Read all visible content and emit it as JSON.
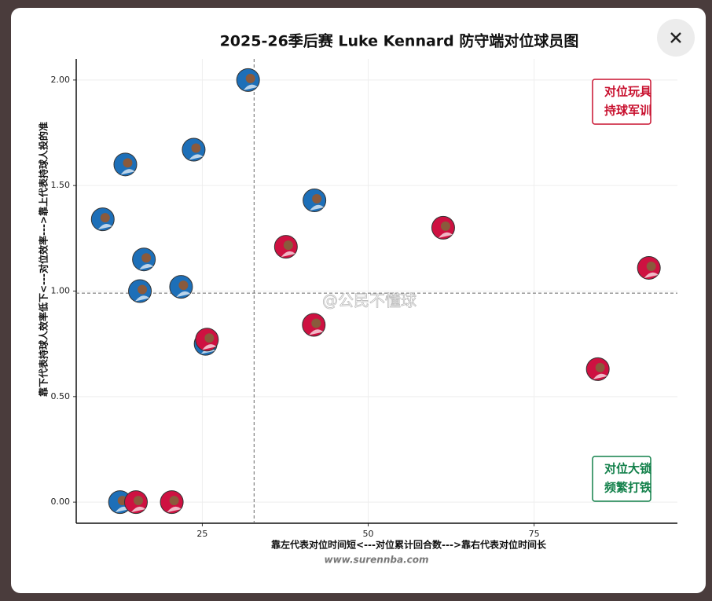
{
  "chart_data": {
    "type": "scatter",
    "title": "2025-26季后赛 Luke Kennard 防守端对位球员图",
    "xlabel": "靠左代表对位时间短<---对位累计回合数--->靠右代表对位时间长",
    "ylabel": "靠下代表持球人效率低下<---对位效率--->靠上代表持球人投的准",
    "xlim": [
      6,
      96.6
    ],
    "ylim": [
      -0.1,
      2.1
    ],
    "xticks": [
      25,
      50,
      75
    ],
    "yticks": [
      {
        "value": 0,
        "label": "0.00"
      },
      {
        "value": 0.5,
        "label": "0.50"
      },
      {
        "value": 1,
        "label": "1.00"
      },
      {
        "value": 1.5,
        "label": "1.50"
      },
      {
        "value": 2,
        "label": "2.00"
      }
    ],
    "grid": true,
    "vline": 32.8,
    "hline": 0.99,
    "series": [
      {
        "color": "#1d6fb8",
        "x": [
          31.9,
          13.4,
          23.7,
          10.0,
          41.9,
          16.2,
          15.6,
          21.8,
          25.5,
          12.6
        ],
        "values": [
          2.0,
          1.6,
          1.67,
          1.34,
          1.43,
          1.15,
          1.0,
          1.02,
          0.75,
          0.0
        ]
      },
      {
        "color": "#ce1141",
        "x": [
          37.6,
          61.3,
          92.3,
          41.8,
          25.7,
          84.6,
          15.0,
          20.4
        ],
        "values": [
          1.21,
          1.3,
          1.11,
          0.84,
          0.77,
          0.63,
          0.0,
          0.0
        ]
      }
    ],
    "annotations": [
      {
        "lines": [
          "对位玩具",
          "持球军训"
        ],
        "color": "#c8102e"
      },
      {
        "lines": [
          "对位大锁",
          "频繁打铁"
        ],
        "color": "#12804a"
      }
    ],
    "watermark": "@公民不懂球",
    "source": "www.surennba.com"
  }
}
